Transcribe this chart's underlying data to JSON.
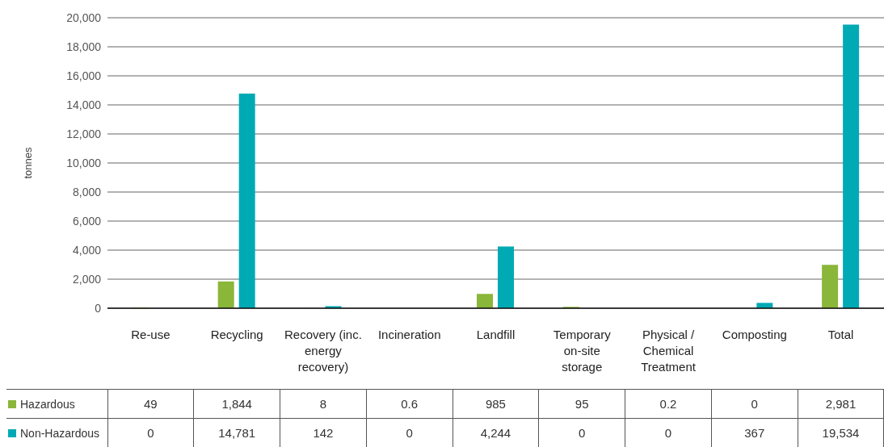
{
  "chart_data": {
    "type": "bar",
    "ylabel": "tonnes",
    "categories": [
      "Re-use",
      "Recycling",
      "Recovery (inc. energy recovery)",
      "Incineration",
      "Landfill",
      "Temporary on-site storage",
      "Physical / Chemical Treatment",
      "Composting",
      "Total"
    ],
    "series": [
      {
        "name": "Hazardous",
        "color": "#8ab639",
        "values": [
          49,
          1844,
          8,
          0.6,
          985,
          95,
          0.2,
          0,
          2981
        ],
        "value_labels": [
          "49",
          "1,844",
          "8",
          "0.6",
          "985",
          "95",
          "0.2",
          "0",
          "2,981"
        ]
      },
      {
        "name": "Non-Hazardous",
        "color": "#00aab5",
        "values": [
          0,
          14781,
          142,
          0,
          4244,
          0,
          0,
          367,
          19534
        ],
        "value_labels": [
          "0",
          "14,781",
          "142",
          "0",
          "4,244",
          "0",
          "0",
          "367",
          "19,534"
        ]
      }
    ],
    "ylim": [
      0,
      20000
    ],
    "yticks": [
      {
        "value": 0,
        "label": "0"
      },
      {
        "value": 2000,
        "label": "2,000"
      },
      {
        "value": 4000,
        "label": "4,000"
      },
      {
        "value": 6000,
        "label": "6,000"
      },
      {
        "value": 8000,
        "label": "8,000"
      },
      {
        "value": 10000,
        "label": "10,000"
      },
      {
        "value": 12000,
        "label": "12,000"
      },
      {
        "value": 14000,
        "label": "14,000"
      },
      {
        "value": 16000,
        "label": "16,000"
      },
      {
        "value": 18000,
        "label": "18,000"
      },
      {
        "value": 20000,
        "label": "20,000"
      }
    ],
    "grid": "y",
    "legend": "bottom"
  }
}
